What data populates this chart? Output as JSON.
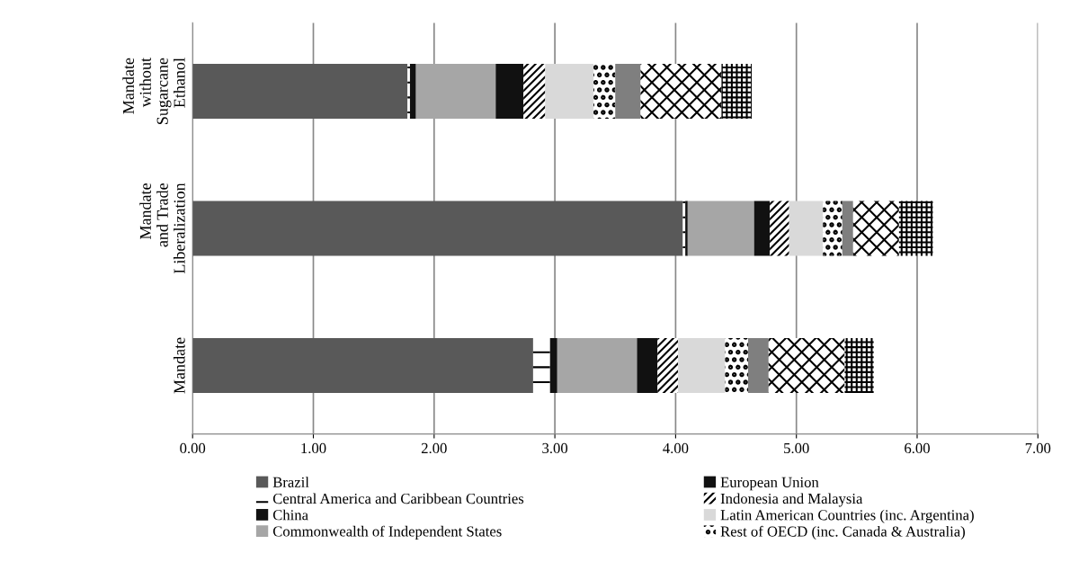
{
  "chart_data": {
    "type": "bar",
    "orientation": "horizontal",
    "stacked": true,
    "categories": [
      "Mandate without Sugarcane Ethanol",
      "Mandate and Trade Liberalization",
      "Mandate"
    ],
    "series": [
      {
        "name": "Brazil",
        "color": "#595959",
        "values": [
          1.78,
          4.06,
          2.82
        ]
      },
      {
        "name": "Central America and Caribbean Countries",
        "color": "#ffffff",
        "values": [
          0.02,
          0.02,
          0.14
        ]
      },
      {
        "name": "China",
        "color": "#111111",
        "values": [
          0.05,
          0.02,
          0.06
        ]
      },
      {
        "name": "Commonwealth of Independent States",
        "color": "#a6a6a6",
        "values": [
          0.66,
          0.55,
          0.66
        ]
      },
      {
        "name": "European Union",
        "color": "#111111",
        "values": [
          0.23,
          0.13,
          0.17
        ]
      },
      {
        "name": "Indonesia and Malaysia",
        "color": "#ffffff",
        "values": [
          0.18,
          0.16,
          0.17
        ]
      },
      {
        "name": "Latin American Countries (inc. Argentina)",
        "color": "#d9d9d9",
        "values": [
          0.4,
          0.28,
          0.39
        ]
      },
      {
        "name": "Rest of OECD (inc. Canada & Australia)",
        "color": "#ffffff",
        "values": [
          0.18,
          0.16,
          0.19
        ]
      },
      {
        "color": "#7f7f7f",
        "values": [
          0.21,
          0.09,
          0.17
        ]
      },
      {
        "color": "#ffffff",
        "values": [
          0.67,
          0.38,
          0.63
        ]
      },
      {
        "color": "#ffffff",
        "values": [
          0.25,
          0.28,
          0.24
        ]
      }
    ],
    "xlim": [
      0,
      7
    ],
    "xticks": [
      {
        "value": 0,
        "label": "0.00"
      },
      {
        "value": 1,
        "label": "1.00"
      },
      {
        "value": 2,
        "label": "2.00"
      },
      {
        "value": 3,
        "label": "3.00"
      },
      {
        "value": 4,
        "label": "4.00"
      },
      {
        "value": 5,
        "label": "5.00"
      },
      {
        "value": 6,
        "label": "6.00"
      },
      {
        "value": 7,
        "label": "7.00"
      }
    ],
    "grid": "x",
    "legend": "bottom"
  }
}
